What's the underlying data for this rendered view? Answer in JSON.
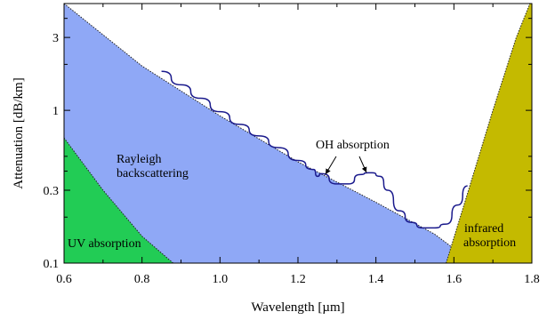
{
  "chart_data": {
    "type": "area",
    "xlabel": "Wavelength [µm]",
    "ylabel": "Attenuation [dB/km]",
    "xlim": [
      0.6,
      1.8
    ],
    "ylim": [
      0.1,
      5.0
    ],
    "y_scale": "log",
    "grid": false,
    "x_ticks": [
      {
        "value": 0.6,
        "label": "0.6"
      },
      {
        "value": 0.8,
        "label": "0.8"
      },
      {
        "value": 1.0,
        "label": "1.0"
      },
      {
        "value": 1.2,
        "label": "1.2"
      },
      {
        "value": 1.4,
        "label": "1.4"
      },
      {
        "value": 1.6,
        "label": "1.6"
      },
      {
        "value": 1.8,
        "label": "1.8"
      }
    ],
    "y_ticks": [
      {
        "value": 0.1,
        "label": "0.1"
      },
      {
        "value": 0.3,
        "label": "0.3"
      },
      {
        "value": 1,
        "label": "1"
      },
      {
        "value": 3,
        "label": "3"
      }
    ],
    "regions": [
      {
        "name": "Rayleigh backscattering",
        "color": "#8fa8f6",
        "boundary": [
          [
            0.6,
            5.0
          ],
          [
            0.8,
            1.95
          ],
          [
            1.0,
            0.92
          ],
          [
            1.2,
            0.46
          ],
          [
            1.4,
            0.25
          ],
          [
            1.55,
            0.155
          ],
          [
            1.65,
            0.1
          ]
        ]
      },
      {
        "name": "UV absorption",
        "color": "#22cc55",
        "boundary": [
          [
            0.6,
            0.66
          ],
          [
            0.7,
            0.3
          ],
          [
            0.8,
            0.15
          ],
          [
            0.88,
            0.1
          ]
        ]
      },
      {
        "name": "infrared absorption",
        "color": "#c4ba00",
        "boundary": [
          [
            1.58,
            0.1
          ],
          [
            1.63,
            0.26
          ],
          [
            1.7,
            1.0
          ],
          [
            1.76,
            3.0
          ],
          [
            1.795,
            5.0
          ]
        ]
      }
    ],
    "series": [
      {
        "color": "#1a1a8c",
        "x": [
          0.85,
          0.9,
          0.95,
          1.0,
          1.05,
          1.1,
          1.15,
          1.2,
          1.24,
          1.25,
          1.26,
          1.3,
          1.33,
          1.36,
          1.38,
          1.39,
          1.41,
          1.43,
          1.46,
          1.49,
          1.52,
          1.55,
          1.58,
          1.61,
          1.635
        ],
        "y": [
          1.8,
          1.47,
          1.2,
          0.98,
          0.81,
          0.68,
          0.57,
          0.47,
          0.41,
          0.37,
          0.385,
          0.33,
          0.33,
          0.38,
          0.39,
          0.39,
          0.37,
          0.3,
          0.22,
          0.185,
          0.17,
          0.17,
          0.18,
          0.24,
          0.32
        ]
      }
    ],
    "annotations": [
      {
        "text": "OH absorption"
      },
      {
        "text": "Rayleigh"
      },
      {
        "text": "backscattering"
      },
      {
        "text": "UV absorption"
      },
      {
        "text": "infrared"
      },
      {
        "text": "absorption"
      }
    ]
  }
}
